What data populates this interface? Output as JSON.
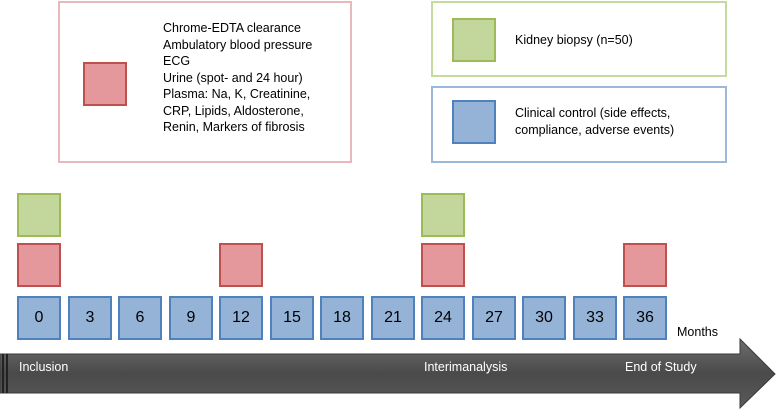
{
  "legend": {
    "assessments": {
      "lines": [
        "Chrome-EDTA clearance",
        "Ambulatory blood pressure",
        "ECG",
        "Urine (spot- and 24 hour)",
        "Plasma: Na, K, Creatinine,",
        "CRP, Lipids, Aldosterone,",
        "Renin, Markers of fibrosis"
      ],
      "color": "#e4989b"
    },
    "biopsy": {
      "lines": [
        "Kidney biopsy (n=50)"
      ],
      "color": "#c3d69b"
    },
    "clinical_control": {
      "lines": [
        "Clinical control (side effects,",
        "compliance, adverse events)"
      ],
      "color": "#95b3d7"
    }
  },
  "timeline": {
    "months": [
      "0",
      "3",
      "6",
      "9",
      "12",
      "15",
      "18",
      "21",
      "24",
      "27",
      "30",
      "33",
      "36"
    ],
    "assessment_months": [
      "0",
      "12",
      "24",
      "36"
    ],
    "biopsy_months": [
      "0",
      "24"
    ],
    "unit_label": "Months"
  },
  "arrow": {
    "labels": {
      "start": "Inclusion",
      "middle": "Interimanalysis",
      "end": "End of Study"
    },
    "color": "#595959"
  }
}
